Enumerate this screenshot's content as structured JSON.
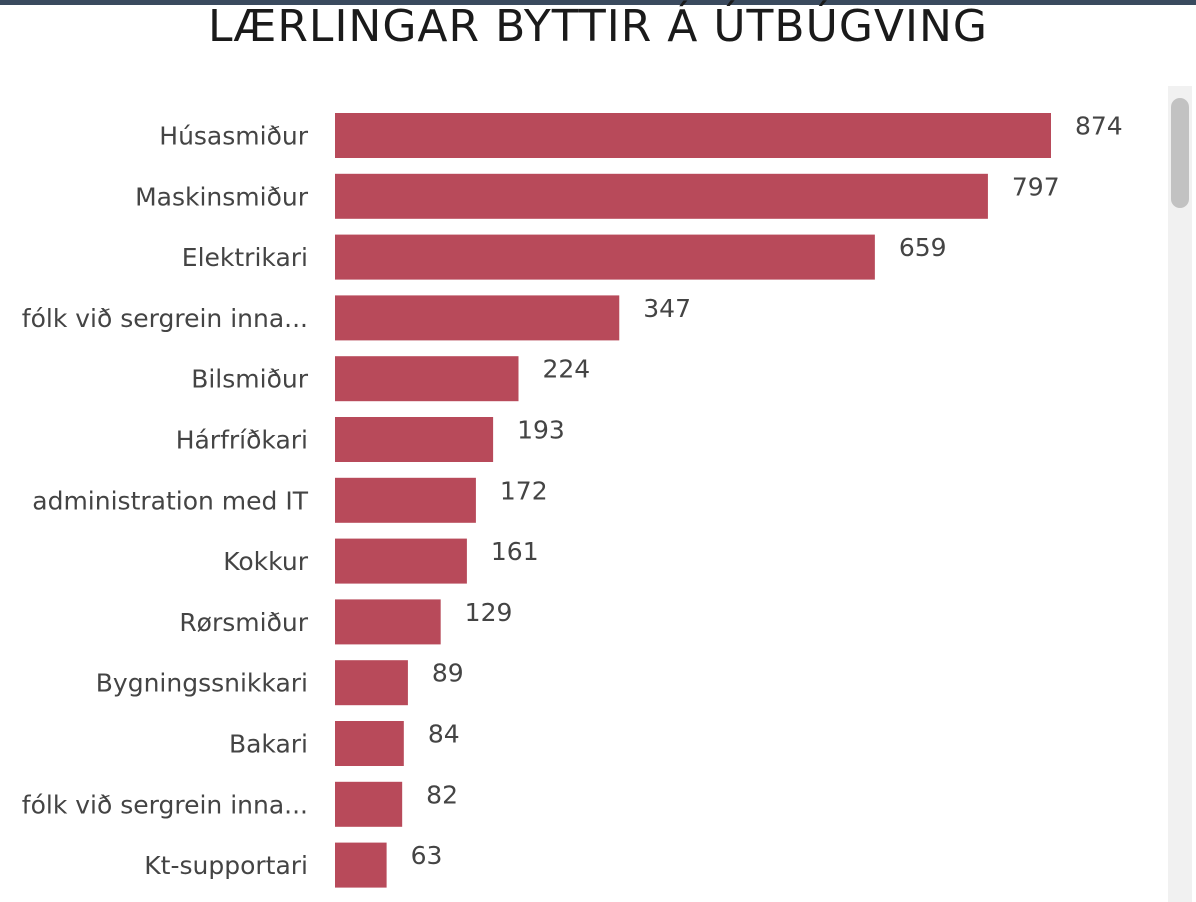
{
  "title": "LÆRLINGAR BYTTIR Á ÚTBÚGVING",
  "bar_color": "#b84a5a",
  "chart_data": {
    "type": "bar",
    "orientation": "horizontal",
    "title": "LÆRLINGAR BYTTIR Á ÚTBÚGVING",
    "xlabel": "",
    "ylabel": "",
    "grid": false,
    "data_labels": true,
    "categories": [
      "Húsasmiður",
      "Maskinsmiður",
      "Elektrikari",
      "fólk við sergrein inna...",
      "Bilsmiður",
      "Hárfríðkari",
      "administration med IT",
      "Kokkur",
      "Rørsmiður",
      "Bygningssnikkari",
      "Bakari",
      "fólk við sergrein inna...",
      "Kt-supportari"
    ],
    "values": [
      874,
      797,
      659,
      347,
      224,
      193,
      172,
      161,
      129,
      89,
      84,
      82,
      63
    ]
  },
  "scrollbar_icon": "vertical-scrollbar"
}
